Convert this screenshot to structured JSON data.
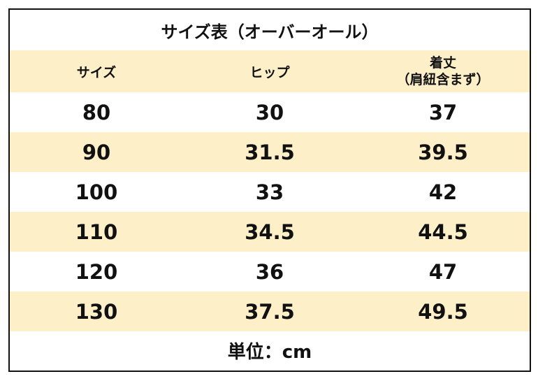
{
  "title": "サイズ表（オーバーオール）",
  "table": {
    "header": [
      "サイズ",
      "ヒップ",
      "着丈"
    ],
    "header_note": "（肩紐含まず）",
    "rows": [
      [
        "80",
        "30",
        "37"
      ],
      [
        "90",
        "31.5",
        "39.5"
      ],
      [
        "100",
        "33",
        "42"
      ],
      [
        "110",
        "34.5",
        "44.5"
      ],
      [
        "120",
        "36",
        "47"
      ],
      [
        "130",
        "37.5",
        "49.5"
      ]
    ]
  },
  "footer": "単位：cm"
}
